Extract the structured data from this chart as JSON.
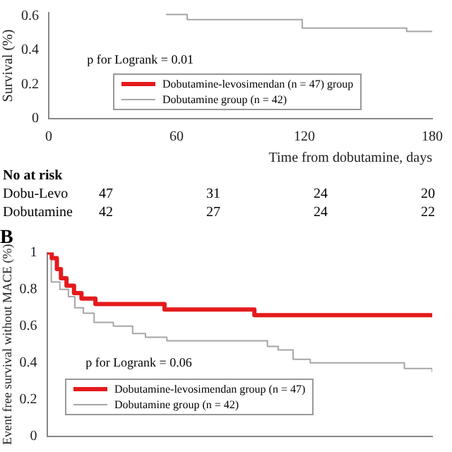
{
  "chart_data": [
    {
      "type": "step",
      "xlabel": "Time from dobutamine, days",
      "ylabel": "Survival (%)",
      "xlim": [
        0,
        180
      ],
      "xticks": [
        0,
        60,
        120,
        180
      ],
      "ylim": [
        0,
        0.62
      ],
      "yticks": [
        0,
        0.2,
        0.4,
        0.6
      ],
      "grid": false,
      "legend": "bottom",
      "marker": "none",
      "series": [
        {
          "name": "Dobutamine-levosimendan (n = 47) group",
          "color": "#e41a1c"
        },
        {
          "name": "Dobutamine group (n = 42)",
          "color": "#a6a6a6",
          "x": [
            55,
            65,
            119,
            168,
            180
          ],
          "values": [
            0.61,
            0.58,
            0.53,
            0.51,
            0.51
          ]
        }
      ],
      "annotations": [
        "p for Logrank = 0.01",
        "No at risk",
        "Dobu-Levo",
        "47",
        "31",
        "24",
        "20",
        "Dobutamine",
        "42",
        "27",
        "24",
        "22"
      ]
    },
    {
      "type": "step",
      "title": "B",
      "ylabel": "Event free survival without MACE (%)",
      "xlim": [
        0,
        180
      ],
      "ylim": [
        0,
        1
      ],
      "yticks": [
        0,
        0.2,
        0.4,
        0.6,
        0.8,
        1
      ],
      "grid": false,
      "legend": "bottom left",
      "marker": "none",
      "tick_labels": "y",
      "series": [
        {
          "name": "Dobutamine-levosimendan group (n = 47)",
          "color": "#e41a1c",
          "x": [
            0,
            2.2,
            4.6,
            6.5,
            9.1,
            12.6,
            16.1,
            22.6,
            54.9,
            96.9,
            180
          ],
          "values": [
            1,
            0.97,
            0.91,
            0.86,
            0.82,
            0.78,
            0.75,
            0.72,
            0.69,
            0.66,
            0.66
          ]
        },
        {
          "name": "Dobutamine group (n = 42)",
          "color": "#a6a6a6",
          "x": [
            0,
            2,
            6,
            10,
            13,
            17,
            22,
            31,
            40,
            46,
            56,
            103,
            108,
            115,
            123,
            167,
            180
          ],
          "values": [
            1,
            0.84,
            0.8,
            0.76,
            0.7,
            0.67,
            0.62,
            0.6,
            0.56,
            0.54,
            0.52,
            0.49,
            0.47,
            0.42,
            0.4,
            0.37,
            0.35
          ]
        }
      ],
      "annotations": [
        "p for Logrank = 0.06"
      ]
    }
  ]
}
